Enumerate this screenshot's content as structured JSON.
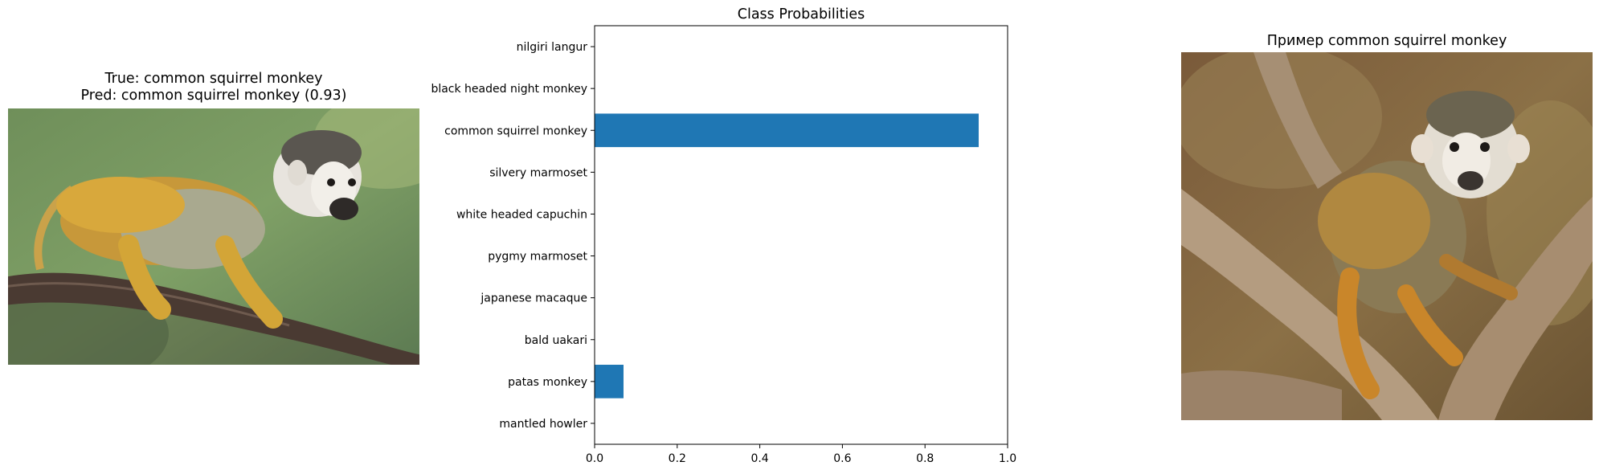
{
  "left_panel": {
    "title_line1": "True: common squirrel monkey",
    "title_line2": "Pred: common squirrel monkey (0.93)"
  },
  "right_panel": {
    "title": "Пример common squirrel monkey"
  },
  "colors": {
    "bar": "#1f77b4"
  },
  "chart_data": {
    "type": "bar",
    "orientation": "horizontal",
    "title": "Class Probabilities",
    "xlabel": "",
    "ylabel": "",
    "categories": [
      "nilgiri langur",
      "black headed night monkey",
      "common squirrel monkey",
      "silvery marmoset",
      "white headed capuchin",
      "pygmy marmoset",
      "japanese macaque",
      "bald uakari",
      "patas monkey",
      "mantled howler"
    ],
    "values": [
      0.0,
      0.0,
      0.93,
      0.0,
      0.0,
      0.0,
      0.0,
      0.0,
      0.07,
      0.0
    ],
    "xlim": [
      0,
      1.0
    ],
    "xticks": [
      "0.0",
      "0.2",
      "0.4",
      "0.6",
      "0.8",
      "1.0"
    ],
    "grid": false
  }
}
